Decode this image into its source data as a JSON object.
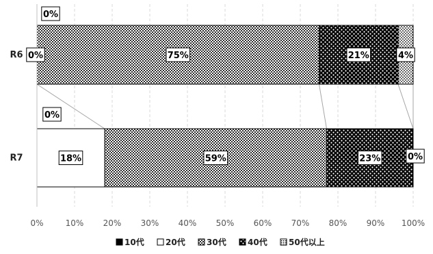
{
  "chart_data": {
    "type": "bar",
    "orientation": "horizontal",
    "stacked": "percent",
    "categories": [
      "R6",
      "R7"
    ],
    "series": [
      {
        "name": "10代",
        "values": [
          0,
          0
        ],
        "labels": [
          "0%",
          "0%"
        ],
        "pattern": "solid"
      },
      {
        "name": "20代",
        "values": [
          0,
          18
        ],
        "labels": [
          "0%",
          "18%"
        ],
        "pattern": "white"
      },
      {
        "name": "30代",
        "values": [
          75,
          59
        ],
        "labels": [
          "75%",
          "59%"
        ],
        "pattern": "checker"
      },
      {
        "name": "40代",
        "values": [
          21,
          23
        ],
        "labels": [
          "21%",
          "23%"
        ],
        "pattern": "dark-dots"
      },
      {
        "name": "50代以上",
        "values": [
          4,
          0
        ],
        "labels": [
          "4%",
          "0%"
        ],
        "pattern": "light-dots"
      }
    ],
    "xlim": [
      0,
      100
    ],
    "x_ticks": [
      "0%",
      "10%",
      "20%",
      "30%",
      "40%",
      "50%",
      "60%",
      "70%",
      "80%",
      "90%",
      "100%"
    ],
    "grid": "vertical-dashed",
    "series_lines": true,
    "legend_position": "bottom",
    "colors": {
      "ink": "#000000",
      "grid": "#d9d9d9",
      "connector": "#a6a6a6",
      "axis": "#bfbfbf"
    }
  }
}
